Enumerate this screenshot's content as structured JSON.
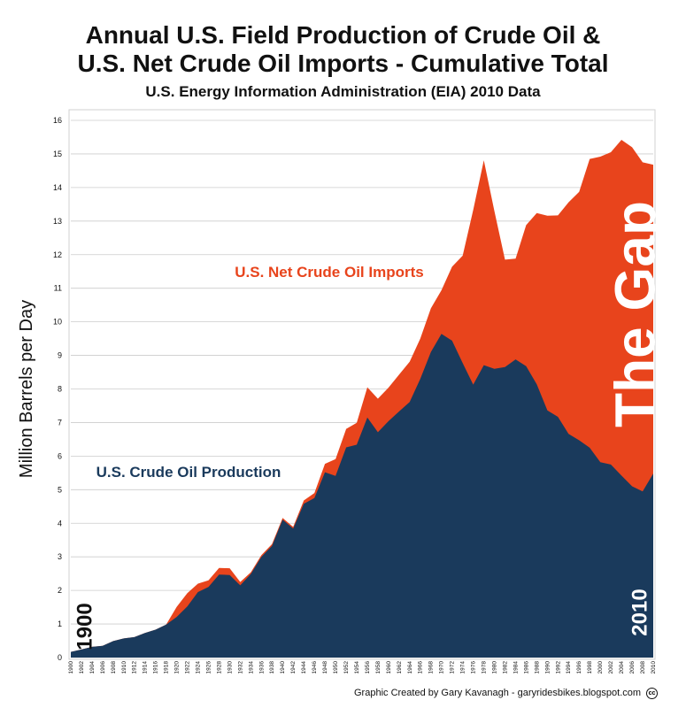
{
  "title_line1": "Annual U.S. Field Production of Crude Oil &",
  "title_line2": "U.S. Net Crude Oil Imports - Cumulative Total",
  "subtitle": "U.S. Energy Information Administration (EIA) 2010 Data",
  "credit": "Graphic Created by Gary Kavanagh - garyridesbikes.blogspot.com",
  "cc_label": "cc",
  "colors": {
    "production": "#1a3a5c",
    "imports": "#e8441c",
    "grid": "#cccccc"
  },
  "chart_data": {
    "type": "area",
    "title": "Annual U.S. Field Production of Crude Oil & U.S. Net Crude Oil Imports - Cumulative Total",
    "ylabel": "Million Barrels per Day",
    "xlabel": "",
    "ylim": [
      0,
      16
    ],
    "yticks": [
      0,
      1,
      2,
      3,
      4,
      5,
      6,
      7,
      8,
      9,
      10,
      11,
      12,
      13,
      14,
      15,
      16
    ],
    "xticks": [
      1900,
      1902,
      1904,
      1906,
      1908,
      1910,
      1912,
      1914,
      1916,
      1918,
      1920,
      1922,
      1924,
      1926,
      1928,
      1930,
      1932,
      1934,
      1936,
      1938,
      1940,
      1942,
      1944,
      1946,
      1948,
      1950,
      1952,
      1954,
      1956,
      1958,
      1960,
      1962,
      1964,
      1966,
      1968,
      1970,
      1972,
      1974,
      1976,
      1978,
      1980,
      1982,
      1984,
      1986,
      1988,
      1990,
      1992,
      1994,
      1996,
      1998,
      2000,
      2002,
      2004,
      2006,
      2008,
      2010
    ],
    "grid": true,
    "annotations": {
      "imports_label": "U.S. Net Crude Oil Imports",
      "production_label": "U.S. Crude Oil Production",
      "gap_label": "The Gap",
      "start_year": "1900",
      "end_year": "2010"
    },
    "x": [
      1900,
      1902,
      1904,
      1906,
      1908,
      1910,
      1912,
      1914,
      1916,
      1918,
      1920,
      1922,
      1924,
      1926,
      1928,
      1930,
      1932,
      1934,
      1936,
      1938,
      1940,
      1942,
      1944,
      1946,
      1948,
      1950,
      1952,
      1954,
      1956,
      1958,
      1960,
      1962,
      1964,
      1966,
      1968,
      1970,
      1972,
      1974,
      1976,
      1978,
      1980,
      1982,
      1984,
      1986,
      1988,
      1990,
      1992,
      1994,
      1996,
      1998,
      2000,
      2002,
      2004,
      2006,
      2008,
      2010
    ],
    "series": [
      {
        "name": "U.S. Crude Oil Production",
        "values": [
          0.17,
          0.24,
          0.32,
          0.35,
          0.49,
          0.57,
          0.61,
          0.73,
          0.83,
          0.98,
          1.21,
          1.52,
          1.95,
          2.1,
          2.47,
          2.46,
          2.15,
          2.49,
          3.0,
          3.33,
          4.11,
          3.84,
          4.58,
          4.75,
          5.52,
          5.41,
          6.26,
          6.34,
          7.15,
          6.71,
          7.04,
          7.33,
          7.61,
          8.3,
          9.1,
          9.64,
          9.44,
          8.77,
          8.13,
          8.71,
          8.6,
          8.65,
          8.88,
          8.68,
          8.14,
          7.36,
          7.17,
          6.66,
          6.47,
          6.25,
          5.82,
          5.75,
          5.42,
          5.1,
          4.95,
          5.48
        ]
      },
      {
        "name": "U.S. Net Crude Oil Imports",
        "values": [
          0,
          0,
          0,
          0,
          0,
          0,
          0,
          0,
          0,
          0,
          0.3,
          0.4,
          0.25,
          0.2,
          0.2,
          0.2,
          0.1,
          0.05,
          0.05,
          0.05,
          0.05,
          0.05,
          0.1,
          0.15,
          0.25,
          0.5,
          0.55,
          0.65,
          0.9,
          1.0,
          1.0,
          1.1,
          1.2,
          1.2,
          1.3,
          1.3,
          2.2,
          3.2,
          5.2,
          6.1,
          4.7,
          3.2,
          3.0,
          4.2,
          5.1,
          5.8,
          6.0,
          6.9,
          7.4,
          8.6,
          9.1,
          9.3,
          10.0,
          10.1,
          9.8,
          9.2
        ]
      }
    ]
  }
}
